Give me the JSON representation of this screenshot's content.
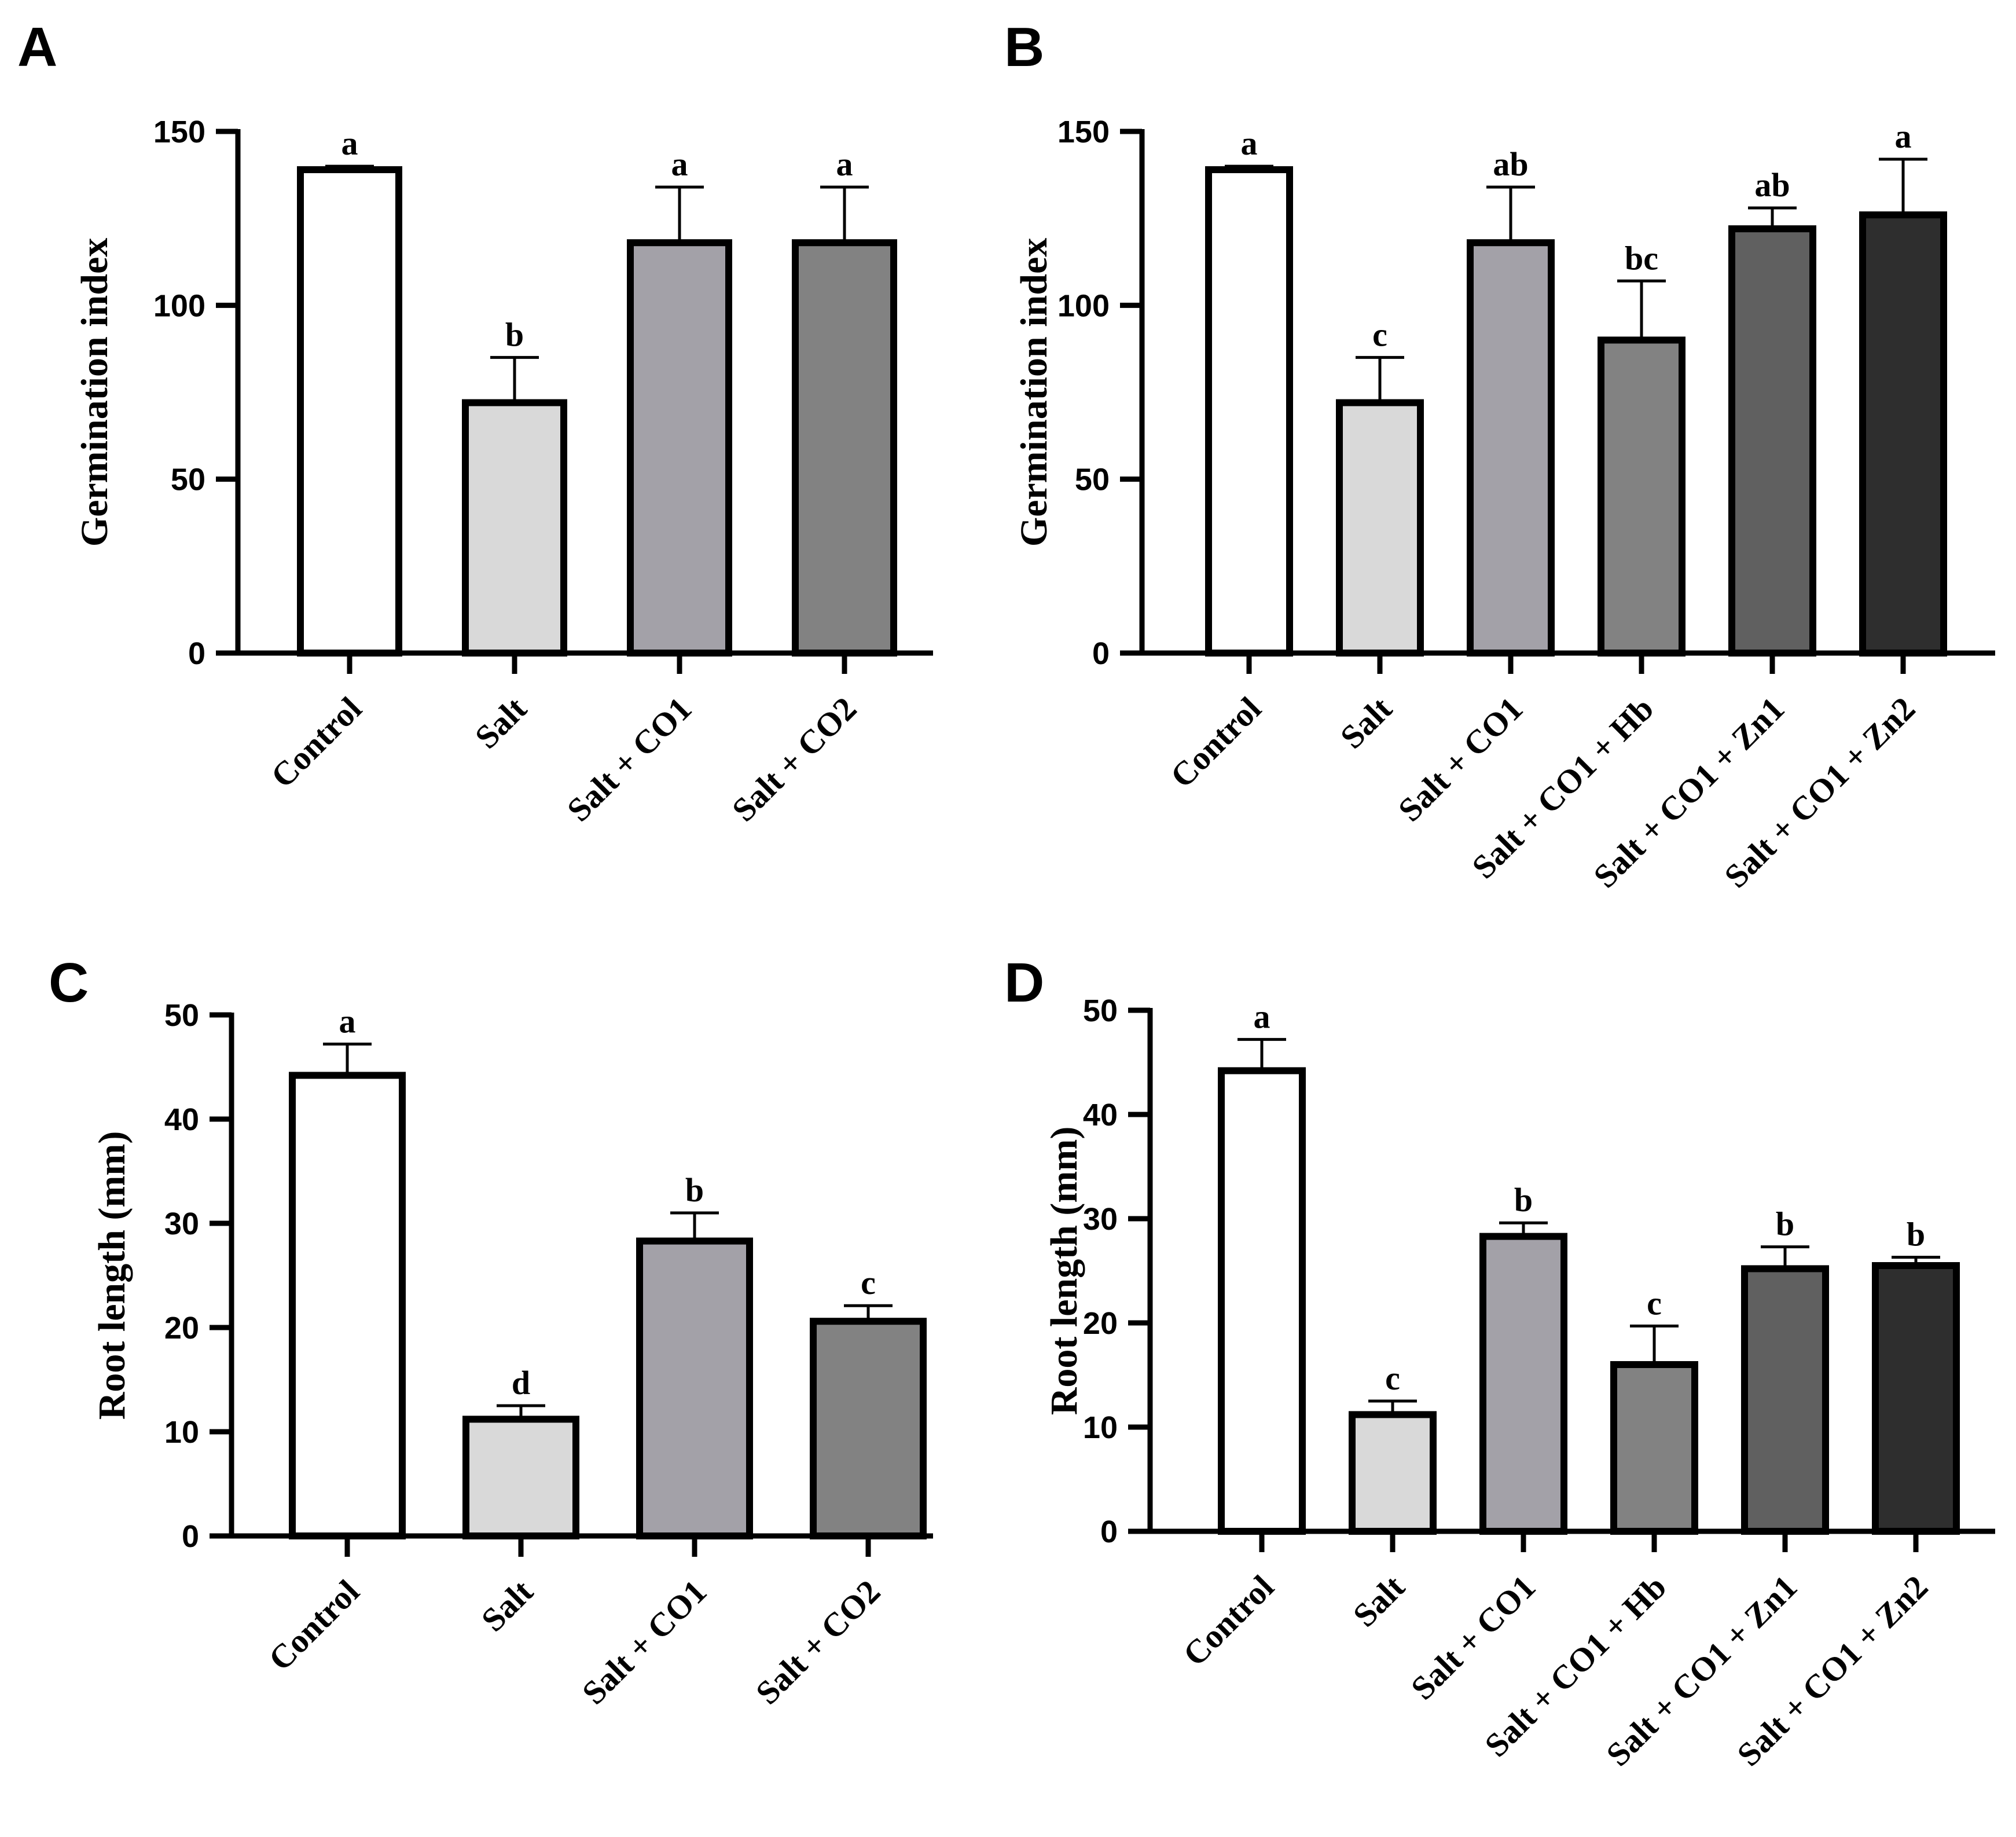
{
  "colors": {
    "control": "#ffffff",
    "salt": "#d9d9d9",
    "co1": "#a3a1a8",
    "co2": "#828282",
    "hb": "#828282",
    "zn1": "#606060",
    "zn2": "#2e2e2e",
    "stroke": "#000000"
  },
  "chart_data": [
    {
      "panel": "A",
      "type": "bar",
      "title": "",
      "xlabel": "",
      "ylabel": "Germination index",
      "ylim": [
        0,
        150
      ],
      "yticks": [
        0,
        50,
        100,
        150
      ],
      "categories": [
        "Control",
        "Salt",
        "Salt + CO1",
        "Salt + CO2"
      ],
      "values": [
        139,
        72,
        118,
        118
      ],
      "errors": [
        1,
        13,
        16,
        16
      ],
      "letters": [
        "a",
        "b",
        "a",
        "a"
      ],
      "colors": [
        "control",
        "salt",
        "co1",
        "co2"
      ]
    },
    {
      "panel": "B",
      "type": "bar",
      "title": "",
      "xlabel": "",
      "ylabel": "Germination index",
      "ylim": [
        0,
        150
      ],
      "yticks": [
        0,
        50,
        100,
        150
      ],
      "categories": [
        "Control",
        "Salt",
        "Salt + CO1",
        "Salt + CO1 + Hb",
        "Salt + CO1 + Zn1",
        "Salt + CO1 + Zn2"
      ],
      "values": [
        139,
        72,
        118,
        90,
        122,
        126
      ],
      "errors": [
        1,
        13,
        16,
        17,
        6,
        16
      ],
      "letters": [
        "a",
        "c",
        "ab",
        "bc",
        "ab",
        "a"
      ],
      "colors": [
        "control",
        "salt",
        "co1",
        "hb",
        "zn1",
        "zn2"
      ]
    },
    {
      "panel": "C",
      "type": "bar",
      "title": "",
      "xlabel": "",
      "ylabel": "Root length (mm)",
      "ylim": [
        0,
        50
      ],
      "yticks": [
        0,
        10,
        20,
        30,
        40,
        50
      ],
      "categories": [
        "Control",
        "Salt",
        "Salt + CO1",
        "Salt + CO2"
      ],
      "values": [
        44.2,
        11.2,
        28.3,
        20.6
      ],
      "errors": [
        3.0,
        1.3,
        2.7,
        1.5
      ],
      "letters": [
        "a",
        "d",
        "b",
        "c"
      ],
      "colors": [
        "control",
        "salt",
        "co1",
        "co2"
      ]
    },
    {
      "panel": "D",
      "type": "bar",
      "title": "",
      "xlabel": "",
      "ylabel": "Root length (mm)",
      "ylim": [
        0,
        50
      ],
      "yticks": [
        0,
        10,
        20,
        30,
        40,
        50
      ],
      "categories": [
        "Control",
        "Salt",
        "Salt + CO1",
        "Salt + CO1 + Hb",
        "Salt + CO1 + Zn1",
        "Salt + CO1 + Zn2"
      ],
      "values": [
        44.2,
        11.2,
        28.3,
        16.0,
        25.2,
        25.5
      ],
      "errors": [
        3.0,
        1.3,
        1.3,
        3.7,
        2.1,
        0.8
      ],
      "letters": [
        "a",
        "c",
        "b",
        "c",
        "b",
        "b"
      ],
      "colors": [
        "control",
        "salt",
        "co1",
        "hb",
        "zn1",
        "zn2"
      ]
    }
  ]
}
